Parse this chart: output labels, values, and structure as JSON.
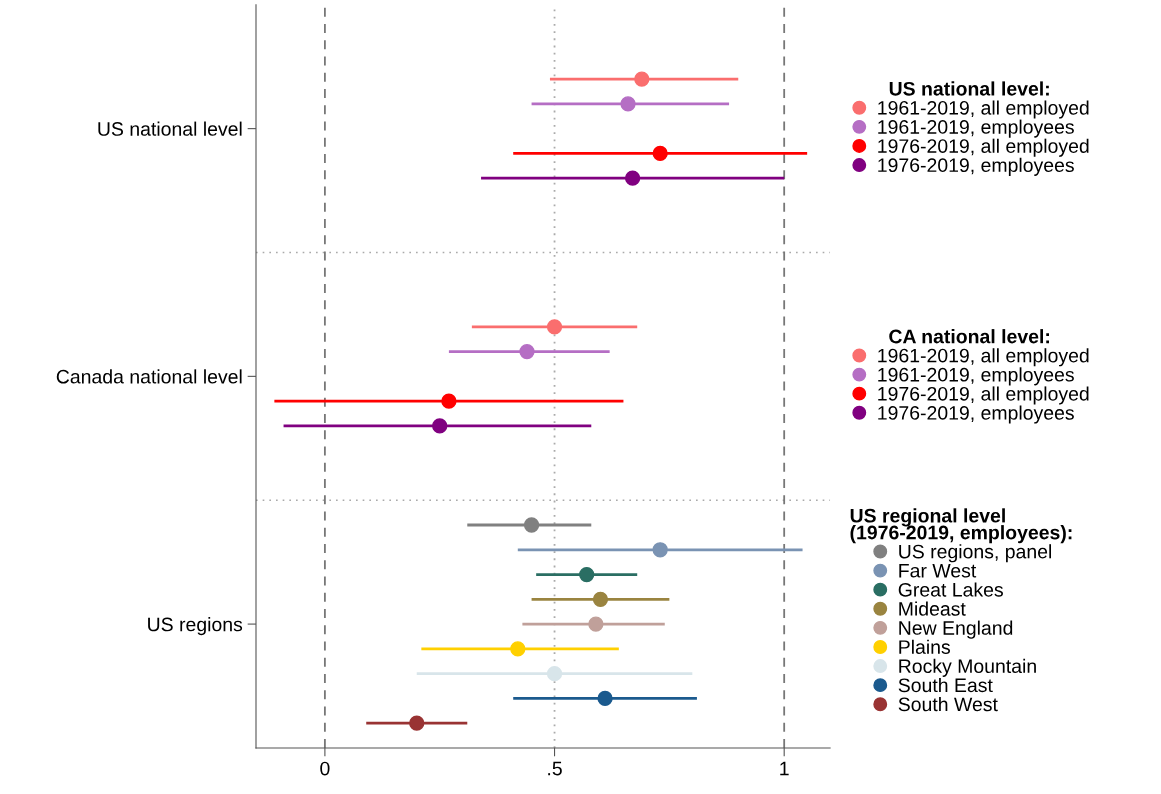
{
  "chart_data": {
    "type": "scatter",
    "orientation": "horizontal",
    "marker": "circle",
    "legend": "right",
    "categories": [
      "US national level",
      "Canada national level",
      "US regions"
    ],
    "xlim": [
      -0.15,
      1.1
    ],
    "xticks": [
      0,
      {
        "value": 0.5,
        "label": ".5"
      },
      1
    ],
    "ref_lines": [
      {
        "axis": "x",
        "value": 0,
        "color": "#777777",
        "line_style": "dashed"
      },
      {
        "axis": "x",
        "value": 0.5,
        "color": "#aaaaaa",
        "line_style": "dotted"
      },
      {
        "axis": "x",
        "value": 1,
        "color": "#777777",
        "line_style": "dashed"
      }
    ],
    "annotations": [
      "US national level:",
      "CA national level:",
      "US regional level\n(1976-2019, employees):"
    ],
    "series": [
      {
        "name": "1961-2019, all employed",
        "color": "#fa6e6e",
        "values": [
          0.69,
          null,
          null
        ],
        "errors": [
          [
            0.49,
            0.9
          ],
          null,
          null
        ]
      },
      {
        "name": "1961-2019, employees",
        "color": "#b56ec4",
        "values": [
          0.66,
          null,
          null
        ],
        "errors": [
          [
            0.45,
            0.88
          ],
          null,
          null
        ]
      },
      {
        "name": "1976-2019, all employed",
        "color": "#ff0000",
        "values": [
          0.73,
          null,
          null
        ],
        "errors": [
          [
            0.41,
            1.05
          ],
          null,
          null
        ]
      },
      {
        "name": "1976-2019, employees",
        "color": "#800080",
        "values": [
          0.67,
          null,
          null
        ],
        "errors": [
          [
            0.34,
            1.0
          ],
          null,
          null
        ]
      },
      {
        "name": "1961-2019, all employed",
        "color": "#fa6e6e",
        "values": [
          null,
          0.5,
          null
        ],
        "errors": [
          null,
          [
            0.32,
            0.68
          ],
          null
        ]
      },
      {
        "name": "1961-2019, employees",
        "color": "#b56ec4",
        "values": [
          null,
          0.44,
          null
        ],
        "errors": [
          null,
          [
            0.27,
            0.62
          ],
          null
        ]
      },
      {
        "name": "1976-2019, all employed",
        "color": "#ff0000",
        "values": [
          null,
          0.27,
          null
        ],
        "errors": [
          null,
          [
            -0.11,
            0.65
          ],
          null
        ]
      },
      {
        "name": "1976-2019, employees",
        "color": "#800080",
        "values": [
          null,
          0.25,
          null
        ],
        "errors": [
          null,
          [
            -0.09,
            0.58
          ],
          null
        ]
      },
      {
        "name": "US regions, panel",
        "color": "#808080",
        "values": [
          null,
          null,
          0.45
        ],
        "errors": [
          null,
          null,
          [
            0.31,
            0.58
          ]
        ]
      },
      {
        "name": "Far West",
        "color": "#7a93b3",
        "values": [
          null,
          null,
          0.73
        ],
        "errors": [
          null,
          null,
          [
            0.42,
            1.04
          ]
        ]
      },
      {
        "name": "Great Lakes",
        "color": "#2a6e63",
        "values": [
          null,
          null,
          0.57
        ],
        "errors": [
          null,
          null,
          [
            0.46,
            0.68
          ]
        ]
      },
      {
        "name": "Mideast",
        "color": "#9a8440",
        "values": [
          null,
          null,
          0.6
        ],
        "errors": [
          null,
          null,
          [
            0.45,
            0.75
          ]
        ]
      },
      {
        "name": "New England",
        "color": "#c0a09a",
        "values": [
          null,
          null,
          0.59
        ],
        "errors": [
          null,
          null,
          [
            0.43,
            0.74
          ]
        ]
      },
      {
        "name": "Plains",
        "color": "#ffd000",
        "values": [
          null,
          null,
          0.42
        ],
        "errors": [
          null,
          null,
          [
            0.21,
            0.64
          ]
        ]
      },
      {
        "name": "Rocky Mountain",
        "color": "#d8e5ea",
        "values": [
          null,
          null,
          0.5
        ],
        "errors": [
          null,
          null,
          [
            0.2,
            0.8
          ]
        ]
      },
      {
        "name": "South East",
        "color": "#1b5a8e",
        "values": [
          null,
          null,
          0.61
        ],
        "errors": [
          null,
          null,
          [
            0.41,
            0.81
          ]
        ]
      },
      {
        "name": "South West",
        "color": "#993333",
        "values": [
          null,
          null,
          0.2
        ],
        "errors": [
          null,
          null,
          [
            0.09,
            0.31
          ]
        ]
      }
    ]
  }
}
